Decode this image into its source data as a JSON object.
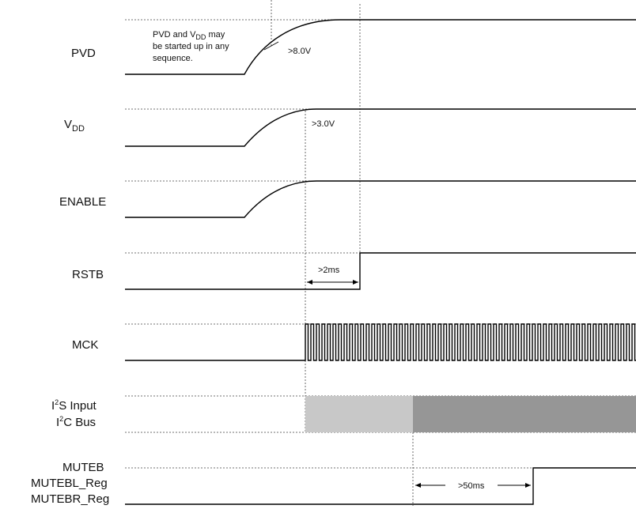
{
  "signals": {
    "pvd": "PVD",
    "vdd_main": "V",
    "vdd_sub": "DD",
    "enable": "ENABLE",
    "rstb": "RSTB",
    "mck": "MCK",
    "i2s_prefix": "I",
    "i2s_sup": "2",
    "i2s_rest": "S Input",
    "i2c_prefix": "I",
    "i2c_sup": "2",
    "i2c_rest": "C Bus",
    "muteb": "MUTEB",
    "mutebl": "MUTEBL_Reg",
    "mutebr": "MUTEBR_Reg"
  },
  "notes": {
    "pvd_line1_a": "PVD and V",
    "pvd_line1_sub": "DD",
    "pvd_line1_b": " may",
    "pvd_line2": "be started up in any",
    "pvd_line3": "sequence."
  },
  "thresholds": {
    "pvd": ">8.0V",
    "vdd": ">3.0V"
  },
  "timings": {
    "rstb_delay": ">2ms",
    "mute_delay": ">50ms"
  },
  "colors": {
    "bus_light": "#c8c8c8",
    "bus_dark": "#969696"
  }
}
